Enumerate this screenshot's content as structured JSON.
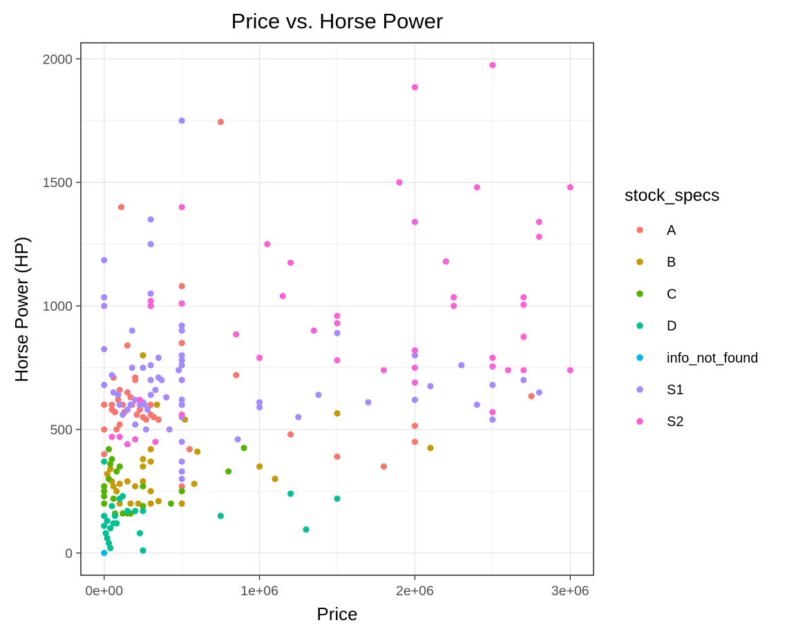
{
  "chart_data": {
    "type": "scatter",
    "title": "Price vs. Horse Power",
    "xlabel": "Price",
    "ylabel": "Horse Power (HP)",
    "xlim": [
      -150000,
      3150000
    ],
    "ylim": [
      -90,
      2065
    ],
    "x_ticks": [
      0,
      1000000,
      2000000,
      3000000
    ],
    "x_tick_labels": [
      "0e+00",
      "1e+06",
      "2e+06",
      "3e+06"
    ],
    "y_ticks": [
      0,
      500,
      1000,
      1500,
      2000
    ],
    "y_tick_labels": [
      "0",
      "500",
      "1000",
      "1500",
      "2000"
    ],
    "grid": true,
    "legend_position": "right",
    "legend_title": "stock_specs",
    "series": [
      {
        "name": "A",
        "color": "#F8766D",
        "points": [
          [
            0,
            600
          ],
          [
            0,
            500
          ],
          [
            0,
            400
          ],
          [
            50000,
            600
          ],
          [
            50000,
            580
          ],
          [
            60000,
            710
          ],
          [
            70000,
            570
          ],
          [
            80000,
            500
          ],
          [
            90000,
            620
          ],
          [
            100000,
            660
          ],
          [
            100000,
            520
          ],
          [
            110000,
            1400
          ],
          [
            120000,
            600
          ],
          [
            130000,
            570
          ],
          [
            150000,
            840
          ],
          [
            150000,
            650
          ],
          [
            170000,
            630
          ],
          [
            180000,
            600
          ],
          [
            200000,
            710
          ],
          [
            200000,
            700
          ],
          [
            210000,
            560
          ],
          [
            230000,
            580
          ],
          [
            250000,
            550
          ],
          [
            270000,
            540
          ],
          [
            300000,
            600
          ],
          [
            300000,
            560
          ],
          [
            320000,
            550
          ],
          [
            350000,
            540
          ],
          [
            500000,
            1080
          ],
          [
            500000,
            850
          ],
          [
            500000,
            270
          ],
          [
            550000,
            420
          ],
          [
            750000,
            1745
          ],
          [
            850000,
            720
          ],
          [
            1200000,
            480
          ],
          [
            1500000,
            390
          ],
          [
            1800000,
            350
          ],
          [
            2000000,
            515
          ],
          [
            2000000,
            450
          ],
          [
            2750000,
            635
          ]
        ]
      },
      {
        "name": "B",
        "color": "#C49A00",
        "points": [
          [
            20000,
            320
          ],
          [
            30000,
            300
          ],
          [
            40000,
            340
          ],
          [
            50000,
            290
          ],
          [
            60000,
            270
          ],
          [
            80000,
            250
          ],
          [
            100000,
            280
          ],
          [
            100000,
            200
          ],
          [
            150000,
            290
          ],
          [
            170000,
            200
          ],
          [
            200000,
            270
          ],
          [
            220000,
            200
          ],
          [
            250000,
            800
          ],
          [
            250000,
            380
          ],
          [
            250000,
            350
          ],
          [
            250000,
            290
          ],
          [
            300000,
            420
          ],
          [
            300000,
            370
          ],
          [
            300000,
            250
          ],
          [
            300000,
            200
          ],
          [
            340000,
            600
          ],
          [
            350000,
            210
          ],
          [
            500000,
            600
          ],
          [
            500000,
            200
          ],
          [
            520000,
            540
          ],
          [
            580000,
            280
          ],
          [
            600000,
            410
          ],
          [
            1000000,
            350
          ],
          [
            1100000,
            300
          ],
          [
            1500000,
            565
          ],
          [
            2100000,
            425
          ]
        ]
      },
      {
        "name": "C",
        "color": "#53B400",
        "points": [
          [
            0,
            270
          ],
          [
            0,
            250
          ],
          [
            0,
            230
          ],
          [
            0,
            200
          ],
          [
            30000,
            420
          ],
          [
            30000,
            300
          ],
          [
            40000,
            360
          ],
          [
            50000,
            380
          ],
          [
            60000,
            220
          ],
          [
            70000,
            160
          ],
          [
            80000,
            330
          ],
          [
            100000,
            350
          ],
          [
            120000,
            160
          ],
          [
            150000,
            160
          ],
          [
            170000,
            160
          ],
          [
            250000,
            270
          ],
          [
            250000,
            190
          ],
          [
            430000,
            200
          ],
          [
            500000,
            250
          ],
          [
            800000,
            330
          ],
          [
            900000,
            425
          ]
        ]
      },
      {
        "name": "D",
        "color": "#00C094",
        "points": [
          [
            0,
            370
          ],
          [
            0,
            150
          ],
          [
            0,
            110
          ],
          [
            10000,
            80
          ],
          [
            20000,
            60
          ],
          [
            20000,
            130
          ],
          [
            30000,
            40
          ],
          [
            40000,
            100
          ],
          [
            40000,
            20
          ],
          [
            50000,
            190
          ],
          [
            60000,
            120
          ],
          [
            70000,
            150
          ],
          [
            80000,
            120
          ],
          [
            100000,
            220
          ],
          [
            120000,
            230
          ],
          [
            150000,
            170
          ],
          [
            200000,
            170
          ],
          [
            230000,
            80
          ],
          [
            250000,
            10
          ],
          [
            250000,
            170
          ],
          [
            750000,
            150
          ],
          [
            1200000,
            240
          ],
          [
            1300000,
            95
          ],
          [
            1500000,
            220
          ]
        ]
      },
      {
        "name": "info_not_found",
        "color": "#00B6EB",
        "points": [
          [
            0,
            0
          ]
        ]
      },
      {
        "name": "S1",
        "color": "#A58AFF",
        "points": [
          [
            0,
            1185
          ],
          [
            0,
            1035
          ],
          [
            0,
            1000
          ],
          [
            0,
            825
          ],
          [
            0,
            680
          ],
          [
            50000,
            720
          ],
          [
            60000,
            650
          ],
          [
            90000,
            640
          ],
          [
            100000,
            600
          ],
          [
            120000,
            560
          ],
          [
            150000,
            580
          ],
          [
            170000,
            600
          ],
          [
            180000,
            750
          ],
          [
            180000,
            900
          ],
          [
            200000,
            620
          ],
          [
            200000,
            520
          ],
          [
            230000,
            600
          ],
          [
            250000,
            750
          ],
          [
            250000,
            610
          ],
          [
            260000,
            600
          ],
          [
            270000,
            500
          ],
          [
            280000,
            580
          ],
          [
            300000,
            1350
          ],
          [
            300000,
            1250
          ],
          [
            300000,
            1050
          ],
          [
            300000,
            1000
          ],
          [
            300000,
            760
          ],
          [
            300000,
            700
          ],
          [
            300000,
            640
          ],
          [
            330000,
            660
          ],
          [
            350000,
            790
          ],
          [
            350000,
            710
          ],
          [
            370000,
            700
          ],
          [
            400000,
            630
          ],
          [
            420000,
            500
          ],
          [
            480000,
            740
          ],
          [
            500000,
            1750
          ],
          [
            500000,
            1010
          ],
          [
            500000,
            920
          ],
          [
            500000,
            900
          ],
          [
            500000,
            800
          ],
          [
            500000,
            780
          ],
          [
            500000,
            760
          ],
          [
            500000,
            700
          ],
          [
            500000,
            620
          ],
          [
            500000,
            600
          ],
          [
            500000,
            550
          ],
          [
            500000,
            450
          ],
          [
            500000,
            370
          ],
          [
            500000,
            330
          ],
          [
            500000,
            300
          ],
          [
            860000,
            460
          ],
          [
            1000000,
            610
          ],
          [
            1000000,
            590
          ],
          [
            1250000,
            550
          ],
          [
            1380000,
            640
          ],
          [
            1500000,
            890
          ],
          [
            1700000,
            610
          ],
          [
            2000000,
            800
          ],
          [
            2000000,
            620
          ],
          [
            2100000,
            675
          ],
          [
            2300000,
            760
          ],
          [
            2400000,
            600
          ],
          [
            2500000,
            680
          ],
          [
            2500000,
            540
          ],
          [
            2700000,
            700
          ],
          [
            2800000,
            650
          ]
        ]
      },
      {
        "name": "S2",
        "color": "#FB61D7",
        "points": [
          [
            50000,
            470
          ],
          [
            100000,
            470
          ],
          [
            150000,
            440
          ],
          [
            200000,
            460
          ],
          [
            230000,
            620
          ],
          [
            300000,
            1020
          ],
          [
            300000,
            1000
          ],
          [
            330000,
            450
          ],
          [
            500000,
            1400
          ],
          [
            500000,
            1010
          ],
          [
            500000,
            560
          ],
          [
            850000,
            885
          ],
          [
            1000000,
            790
          ],
          [
            1050000,
            1250
          ],
          [
            1150000,
            1040
          ],
          [
            1200000,
            1175
          ],
          [
            1350000,
            900
          ],
          [
            1500000,
            960
          ],
          [
            1500000,
            930
          ],
          [
            1500000,
            780
          ],
          [
            1800000,
            740
          ],
          [
            1900000,
            1500
          ],
          [
            2000000,
            1885
          ],
          [
            2000000,
            1340
          ],
          [
            2000000,
            820
          ],
          [
            2000000,
            750
          ],
          [
            2000000,
            690
          ],
          [
            2200000,
            1180
          ],
          [
            2250000,
            1035
          ],
          [
            2250000,
            1000
          ],
          [
            2400000,
            1480
          ],
          [
            2500000,
            1975
          ],
          [
            2500000,
            790
          ],
          [
            2500000,
            755
          ],
          [
            2500000,
            570
          ],
          [
            2600000,
            740
          ],
          [
            2700000,
            1035
          ],
          [
            2700000,
            1005
          ],
          [
            2700000,
            875
          ],
          [
            2700000,
            740
          ],
          [
            2800000,
            1340
          ],
          [
            2800000,
            1280
          ],
          [
            3000000,
            1480
          ],
          [
            3000000,
            740
          ]
        ]
      }
    ]
  }
}
